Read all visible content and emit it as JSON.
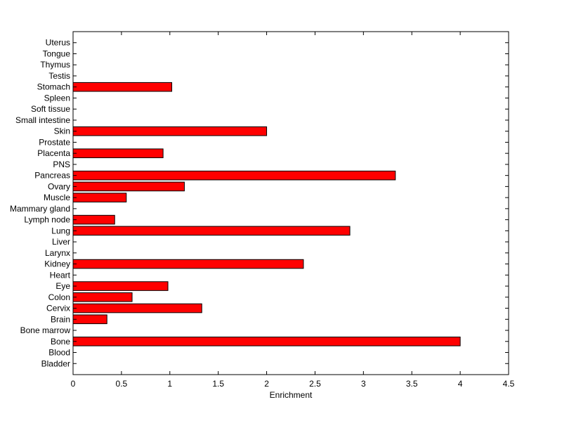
{
  "chart_data": {
    "type": "bar",
    "orientation": "horizontal",
    "xlabel": "Enrichment",
    "xlim": [
      0,
      4.5
    ],
    "xticks": [
      0,
      0.5,
      1,
      1.5,
      2,
      2.5,
      3,
      3.5,
      4,
      4.5
    ],
    "grid": false,
    "bar_color": "#ff0000",
    "categories": [
      "Bladder",
      "Blood",
      "Bone",
      "Bone marrow",
      "Brain",
      "Cervix",
      "Colon",
      "Eye",
      "Heart",
      "Kidney",
      "Larynx",
      "Liver",
      "Lung",
      "Lymph node",
      "Mammary gland",
      "Muscle",
      "Ovary",
      "Pancreas",
      "PNS",
      "Placenta",
      "Prostate",
      "Skin",
      "Small intestine",
      "Soft tissue",
      "Spleen",
      "Stomach",
      "Testis",
      "Thymus",
      "Tongue",
      "Uterus"
    ],
    "values": [
      0,
      0,
      4.0,
      0,
      0.35,
      1.33,
      0.61,
      0.98,
      0,
      2.38,
      0,
      0,
      2.86,
      0.43,
      0,
      0.55,
      1.15,
      3.33,
      0,
      0.93,
      0,
      2.0,
      0,
      0,
      0,
      1.02,
      0,
      0,
      0,
      0
    ]
  }
}
